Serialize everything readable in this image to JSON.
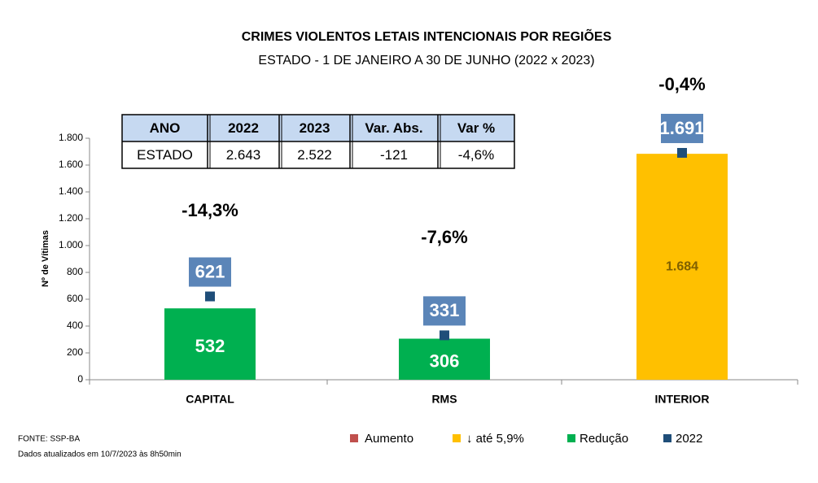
{
  "chart_data": {
    "type": "bar",
    "title": "CRIMES VIOLENTOS LETAIS INTENCIONAIS POR REGIÕES",
    "subtitle": "ESTADO - 1 DE JANEIRO A 30 DE JUNHO (2022 x 2023)",
    "ylabel": "Nº de Vítimas",
    "categories": [
      "CAPITAL",
      "RMS",
      "INTERIOR"
    ],
    "series": [
      {
        "name": "Aumento",
        "color": "#c0504d",
        "values": [
          0,
          0,
          0
        ],
        "value_labels": [
          "-",
          "-",
          "-"
        ]
      },
      {
        "name": "↓ até 5,9%",
        "color": "#ffc000",
        "values": [
          null,
          null,
          1684
        ],
        "value_labels": [
          null,
          null,
          "1.684"
        ]
      },
      {
        "name": "Redução",
        "color": "#00b050",
        "values": [
          532,
          306,
          null
        ]
      },
      {
        "name": "2022",
        "color": "#1f4e79",
        "values": [
          621,
          331,
          1691
        ],
        "value_labels": [
          "621",
          "331",
          "1.691"
        ],
        "mark": "marker"
      }
    ],
    "variation_labels": [
      "-14,3%",
      "-7,6%",
      "-0,4%"
    ],
    "ylim": [
      0,
      1800
    ],
    "yticks": [
      0,
      200,
      400,
      600,
      800,
      {
        "value": 1000,
        "label": "1.000"
      },
      {
        "value": 1200,
        "label": "1.200"
      },
      {
        "value": 1400,
        "label": "1.400"
      },
      {
        "value": 1600,
        "label": "1.600"
      },
      {
        "value": 1800,
        "label": "1.800"
      }
    ],
    "grid": false
  },
  "table": {
    "header": [
      "ANO",
      "2022",
      "2023",
      "Var. Abs.",
      "Var %"
    ],
    "rows": [
      [
        "ESTADO",
        "2.643",
        "2.522",
        "-121",
        "-4,6%"
      ]
    ]
  },
  "footer": {
    "source": "FONTE: SSP-BA",
    "note": "Dados atualizados em 10/7/2023 às 8h50min"
  }
}
